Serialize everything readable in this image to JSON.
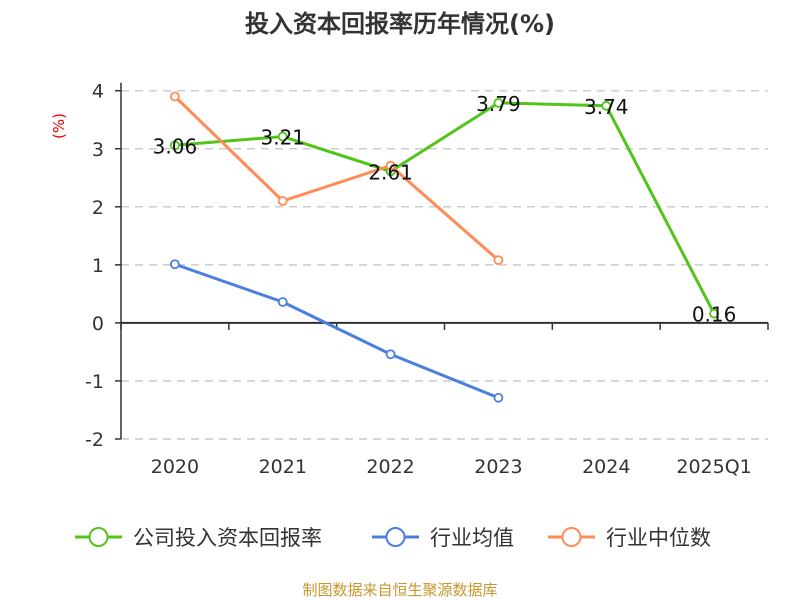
{
  "chart_data": {
    "type": "line",
    "title": "投入资本回报率历年情况(%)",
    "ylabel": "(%)",
    "categories": [
      "2020",
      "2021",
      "2022",
      "2023",
      "2024",
      "2025Q1"
    ],
    "ylim": [
      -2,
      4
    ],
    "yticks": [
      -2,
      -1,
      0,
      1,
      2,
      3,
      4
    ],
    "grid": true,
    "legend_position": "bottom",
    "series": [
      {
        "name": "公司投入资本回报率",
        "color": "#52c41a",
        "values": [
          3.06,
          3.21,
          2.61,
          3.79,
          3.74,
          0.16
        ],
        "labels": [
          "3.06",
          "3.21",
          "2.61",
          "3.79",
          "3.74",
          "0.16"
        ]
      },
      {
        "name": "行业均值",
        "color": "#4a7fe0",
        "values": [
          1.01,
          0.36,
          -0.54,
          -1.29,
          null,
          null
        ]
      },
      {
        "name": "行业中位数",
        "color": "#ff8c55",
        "values": [
          3.9,
          2.1,
          2.71,
          1.08,
          null,
          null
        ]
      }
    ]
  },
  "footer": "制图数据来自恒生聚源数据库"
}
